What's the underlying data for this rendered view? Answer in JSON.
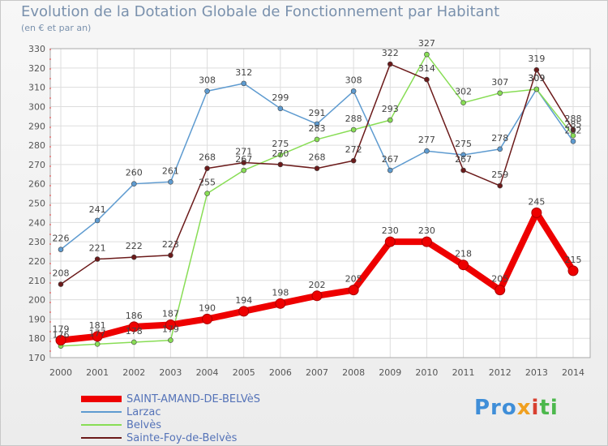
{
  "chart_data": {
    "type": "line",
    "title": "Evolution de la Dotation Globale de Fonctionnement par Habitant",
    "subtitle": "(en € et par an)",
    "categories": [
      "2000",
      "2001",
      "2002",
      "2003",
      "2004",
      "2005",
      "2006",
      "2007",
      "2008",
      "2009",
      "2010",
      "2011",
      "2012",
      "2013",
      "2014"
    ],
    "ylim": [
      170,
      330
    ],
    "yticks": [
      170,
      180,
      190,
      200,
      210,
      220,
      230,
      240,
      250,
      260,
      270,
      280,
      290,
      300,
      310,
      320,
      330
    ],
    "grid": true,
    "legend_position": "bottom-left",
    "series": [
      {
        "name": "SAINT-AMAND-DE-BELVèS",
        "color": "#ee0000",
        "values": [
          179,
          181,
          186,
          187,
          190,
          194,
          198,
          202,
          205,
          230,
          230,
          218,
          205,
          245,
          215
        ]
      },
      {
        "name": "Larzac",
        "color": "#5e9bd0",
        "values": [
          226,
          241,
          260,
          261,
          308,
          312,
          299,
          291,
          308,
          267,
          277,
          275,
          278,
          309,
          282
        ]
      },
      {
        "name": "Belvès",
        "color": "#88dd55",
        "values": [
          176,
          177,
          178,
          179,
          255,
          267,
          275,
          283,
          288,
          293,
          327,
          302,
          307,
          309,
          285
        ]
      },
      {
        "name": "Sainte-Foy-de-Belvès",
        "color": "#6b1a1a",
        "values": [
          208,
          221,
          222,
          223,
          268,
          271,
          270,
          268,
          272,
          322,
          314,
          267,
          259,
          319,
          288
        ]
      }
    ],
    "label_text": {
      "SAINT-AMAND-DE-BELVèS": [
        "179",
        "181",
        "186",
        "187",
        "190",
        "194",
        "198",
        "202",
        "205",
        "230",
        "230",
        "218",
        "205",
        "245",
        "215"
      ],
      "Larzac": [
        "226",
        "241",
        "260",
        "261",
        "308",
        "312",
        "299",
        "291",
        "308",
        "267",
        "277",
        "275",
        "278",
        "309",
        "282"
      ],
      "Belvès": [
        "176",
        "177",
        "178",
        "179",
        "255",
        "267",
        "275",
        "283",
        "288",
        "293",
        "327",
        "302",
        "307",
        "309",
        "285"
      ],
      "Sainte-Foy-de-Belvès": [
        "208",
        "221",
        "222",
        "223",
        "268",
        "271",
        "270",
        "268",
        "272",
        "322",
        "314",
        "267",
        "259",
        "319",
        "288"
      ]
    }
  },
  "logo": {
    "text_parts": [
      "Pro",
      "x",
      "i",
      "ti"
    ]
  }
}
